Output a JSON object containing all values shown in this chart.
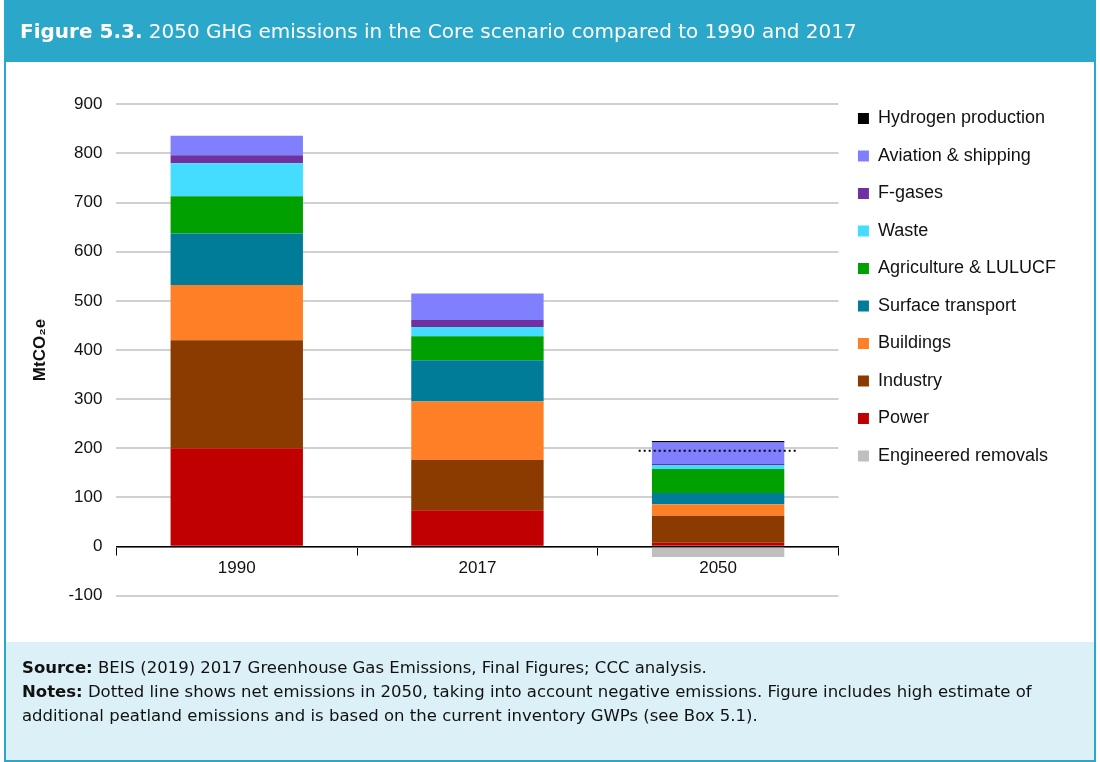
{
  "chart_data": {
    "type": "bar",
    "title": "Figure 5.3. 2050 GHG emissions in the Core scenario compared to 1990 and 2017",
    "ylabel": "MtCO₂e",
    "categories": [
      "1990",
      "2017",
      "2050"
    ],
    "stacked": true,
    "series": [
      {
        "name": "Engineered removals",
        "color": "#bfbfbf",
        "values": [
          null,
          null,
          -21
        ]
      },
      {
        "name": "Power",
        "color": "#c00000",
        "values": [
          200,
          74,
          8
        ]
      },
      {
        "name": "Industry",
        "color": "#8b3a00",
        "values": [
          220,
          102,
          55
        ]
      },
      {
        "name": "Buildings",
        "color": "#ff7f27",
        "values": [
          112,
          119,
          23
        ]
      },
      {
        "name": "Surface transport",
        "color": "#007c99",
        "values": [
          105,
          84,
          23
        ]
      },
      {
        "name": "Agriculture & LULUCF",
        "color": "#00a000",
        "values": [
          76,
          49,
          49
        ]
      },
      {
        "name": "Waste",
        "color": "#44ddff",
        "values": [
          67,
          19,
          8
        ]
      },
      {
        "name": "F-gases",
        "color": "#7030a0",
        "values": [
          16,
          14,
          2
        ]
      },
      {
        "name": "Aviation & shipping",
        "color": "#8080ff",
        "values": [
          40,
          54,
          44
        ]
      },
      {
        "name": "Hydrogen production",
        "color": "#000000",
        "values": [
          null,
          null,
          3
        ]
      }
    ],
    "ylim": [
      -100,
      900
    ],
    "yticks": [
      -100,
      0,
      100,
      200,
      300,
      400,
      500,
      600,
      700,
      800,
      900
    ],
    "grid": "y",
    "legend": "right",
    "ref_lines": [
      {
        "axis": "y",
        "value": 195,
        "line_style": "dotted",
        "color": "#000000"
      }
    ],
    "annotations": [
      "Source: BEIS (2019) 2017 Greenhouse Gas Emissions, Final Figures; CCC analysis.",
      "Notes: Dotted line shows net emissions in 2050, taking into account negative emissions. Figure includes high estimate of additional peatland emissions and is based on the current inventory GWPs (see Box 5.1)."
    ]
  }
}
